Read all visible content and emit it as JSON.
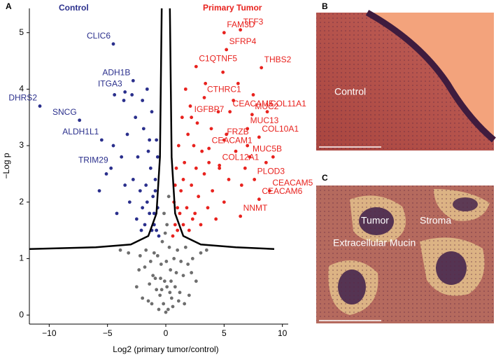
{
  "chart_data": {
    "type": "scatter",
    "x_label": "Log2 (primary tumor/control)",
    "y_label": "−Log p",
    "xlim": [
      -11.7,
      10.5
    ],
    "ylim": [
      -0.16,
      5.43
    ],
    "xticks": [
      {
        "value": -10,
        "label": "−10"
      },
      {
        "value": -5,
        "label": "−5"
      },
      0,
      5,
      10
    ],
    "yticks": [
      0,
      1,
      2,
      3,
      4,
      5
    ],
    "series": [
      {
        "name": "Control",
        "color": "#2a2f8c",
        "x": [
          -0.6,
          -0.8,
          -1,
          -1.2,
          -0.7,
          -1.4,
          -1.1,
          -1.6,
          -0.9,
          -1.8,
          -2.0,
          -1.3,
          -2.2,
          -1.5,
          -0.8,
          -2.5,
          -2.8,
          -1.9,
          -3.1,
          -2.4,
          -1.2,
          -3.5,
          -2.0,
          -3.8,
          -1.6,
          -4.2,
          -2.6,
          -3.3,
          -4.5,
          -5.1,
          -0.7,
          -1.7,
          -2.1,
          -1.0,
          -5.7,
          -4.4,
          -3.6,
          -2.9,
          -1.4,
          -0.9
        ],
        "values": [
          1.4,
          1.5,
          1.6,
          1.5,
          1.9,
          1.8,
          2.1,
          2.0,
          2.4,
          1.6,
          1.9,
          2.6,
          2.2,
          2.9,
          3.1,
          1.7,
          2.4,
          3.3,
          2.0,
          2.8,
          3.6,
          2.3,
          3.8,
          2.8,
          4.0,
          1.8,
          3.5,
          3.2,
          3.0,
          2.5,
          2.8,
          2.3,
          1.5,
          1.8,
          2.2,
          3.9,
          3.8,
          3.9,
          3.1,
          2.2
        ],
        "annotations": [
          {
            "text": "CLIC6",
            "x": -4.5,
            "y": 4.8
          },
          {
            "text": "ADH1B",
            "x": -2.8,
            "y": 4.15
          },
          {
            "text": "ITGA3",
            "x": -3.5,
            "y": 3.95
          },
          {
            "text": "DHRS2",
            "x": -10.8,
            "y": 3.7
          },
          {
            "text": "SNCG",
            "x": -7.4,
            "y": 3.45
          },
          {
            "text": "ALDH1L1",
            "x": -5.5,
            "y": 3.1
          },
          {
            "text": "TRIM29",
            "x": -4.7,
            "y": 2.6
          }
        ]
      },
      {
        "name": "Primary Tumor",
        "color": "#e8221e",
        "x": [
          0.6,
          0.8,
          1.0,
          1.2,
          0.7,
          1.5,
          1.3,
          1.8,
          0.9,
          2.0,
          2.2,
          1.6,
          2.5,
          1.1,
          2.8,
          3.0,
          1.9,
          3.3,
          2.4,
          3.6,
          1.4,
          4.0,
          2.7,
          4.3,
          3.1,
          4.6,
          1.7,
          5.0,
          3.9,
          5.4,
          2.1,
          6.0,
          4.5,
          6.5,
          3.4,
          5.8,
          7.0,
          4.9,
          7.5,
          6.2,
          1.0,
          1.5,
          2.3,
          0.8,
          2.6,
          3.7,
          5.2,
          6.8,
          8.6,
          9.2
        ],
        "values": [
          1.4,
          1.6,
          1.5,
          1.8,
          2.0,
          1.6,
          2.2,
          1.9,
          2.6,
          1.5,
          2.3,
          2.7,
          1.8,
          3.0,
          2.1,
          1.6,
          3.2,
          2.5,
          3.0,
          1.9,
          3.5,
          2.2,
          3.4,
          1.7,
          2.9,
          2.6,
          4.0,
          2.0,
          3.3,
          2.4,
          3.7,
          2.9,
          3.6,
          2.3,
          4.1,
          3.8,
          3.0,
          4.3,
          3.9,
          4.1,
          1.9,
          2.4,
          1.7,
          2.3,
          2.6,
          2.7,
          3.2,
          2.6,
          2.7,
          2.8
        ],
        "annotations": [
          {
            "text": "TFF3",
            "x": 6.4,
            "y": 5.05
          },
          {
            "text": "FAM3D",
            "x": 5.0,
            "y": 5.0
          },
          {
            "text": "SFRP4",
            "x": 5.2,
            "y": 4.7
          },
          {
            "text": "THBS2",
            "x": 8.2,
            "y": 4.38
          },
          {
            "text": "C1QTNF5",
            "x": 2.6,
            "y": 4.4
          },
          {
            "text": "COL11A1",
            "x": 8.7,
            "y": 3.6
          },
          {
            "text": "CTHRC1",
            "x": 3.3,
            "y": 3.85
          },
          {
            "text": "CEACAM5",
            "x": 5.5,
            "y": 3.6
          },
          {
            "text": "MUC2",
            "x": 7.4,
            "y": 3.55
          },
          {
            "text": "IGFBP7",
            "x": 2.2,
            "y": 3.5
          },
          {
            "text": "MUC13",
            "x": 7.0,
            "y": 3.3
          },
          {
            "text": "COL10A1",
            "x": 8.0,
            "y": 3.15
          },
          {
            "text": "FRZB",
            "x": 5.0,
            "y": 3.1
          },
          {
            "text": "CEACAM1",
            "x": 3.7,
            "y": 2.95
          },
          {
            "text": "MUC5B",
            "x": 7.2,
            "y": 2.8
          },
          {
            "text": "COL12A1",
            "x": 4.6,
            "y": 2.65
          },
          {
            "text": "PLOD3",
            "x": 7.6,
            "y": 2.4
          },
          {
            "text": "CEACAM5",
            "x": 8.9,
            "y": 2.2
          },
          {
            "text": "CEACAM6",
            "x": 8.0,
            "y": 2.05
          },
          {
            "text": "NNMT",
            "x": 6.4,
            "y": 1.75
          }
        ]
      },
      {
        "color": "#6e6e6e",
        "x": [
          0,
          0.2,
          -0.2,
          0.5,
          -0.5,
          0.1,
          -0.1,
          0.8,
          -0.8,
          1.2,
          -1.1,
          0.4,
          -0.4,
          1.5,
          -1.4,
          0.7,
          -0.7,
          1.9,
          -1.8,
          0.3,
          -0.3,
          1.0,
          -1.0,
          2.3,
          -2.2,
          0.6,
          -0.6,
          1.6,
          -1.5,
          2.6,
          -2.5,
          0.1,
          -0.15,
          0.25,
          3.0,
          -3.2,
          1.3,
          -1.3,
          0.9,
          -0.9,
          2.0,
          -2.0,
          0.45,
          -0.45,
          1.1,
          -1.2,
          0.05,
          -0.05,
          1.7,
          -1.7,
          3.5,
          -3.9,
          0.35,
          -0.35,
          2.2,
          -2.3
        ],
        "values": [
          0.05,
          0.1,
          0.2,
          0.3,
          0.35,
          0.5,
          0.6,
          0.5,
          0.45,
          0.4,
          0.7,
          0.8,
          0.9,
          0.7,
          0.55,
          1.0,
          1.05,
          0.9,
          0.85,
          1.2,
          1.3,
          1.15,
          1.1,
          1.0,
          1.05,
          0.15,
          0.1,
          0.2,
          0.25,
          0.6,
          0.5,
          1.6,
          1.8,
          2.1,
          1.1,
          1.1,
          0.95,
          0.95,
          0.75,
          0.65,
          0.35,
          0.3,
          0.6,
          0.65,
          0.25,
          0.2,
          0.95,
          1.45,
          1.2,
          1.15,
          1.15,
          1.15,
          0.4,
          0.45,
          0.75,
          0.8
        ]
      },
      {
        "type": "line",
        "color": "#000000",
        "x": [
          -11.7,
          -6,
          -3,
          -1.5,
          -0.8,
          -0.5,
          -0.35
        ],
        "values": [
          1.17,
          1.2,
          1.25,
          1.4,
          1.8,
          2.8,
          5.43
        ]
      },
      {
        "type": "line",
        "color": "#000000",
        "x": [
          0.35,
          0.5,
          0.8,
          1.5,
          3,
          6,
          9.3
        ],
        "values": [
          5.43,
          2.8,
          1.8,
          1.4,
          1.25,
          1.2,
          1.17
        ]
      }
    ]
  },
  "panel_labels": [
    "A",
    "B",
    "C"
  ],
  "image_b_labels": [
    "Control"
  ],
  "image_c_labels": [
    "Tumor",
    "Stroma",
    "Extracellular Mucin"
  ]
}
